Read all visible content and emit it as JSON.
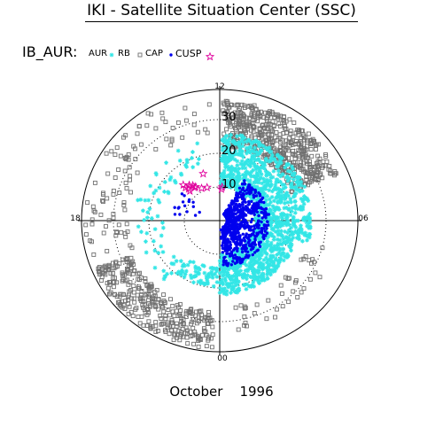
{
  "header": {
    "title": "IKI - Satellite Situation Center (SSC)"
  },
  "legend": {
    "title": "IB_AUR:",
    "entries": [
      {
        "label": "AUR",
        "series": "AUR",
        "marker": "asterisk",
        "color": "#33e6e6"
      },
      {
        "label": "RB",
        "series": "RB",
        "marker": "square",
        "color": "#707070"
      },
      {
        "label": "CAP",
        "series": "CAP",
        "marker": "dot",
        "color": "#0000ee"
      },
      {
        "label": "CUSP",
        "series": "CUSP",
        "marker": "star",
        "color": "#e0009c"
      }
    ]
  },
  "footer": {
    "month": "October",
    "year": "1996"
  },
  "chart_data": {
    "type": "scatter",
    "coordinate_system": "polar MLT / invariant colatitude (deg)",
    "angular_ticks": [
      "12",
      "18",
      "00",
      "06"
    ],
    "radial_ticks": [
      "10",
      "20",
      "30"
    ],
    "radial_range_deg": [
      0,
      40
    ],
    "grid": "dotted rings at 10, 20, 30 deg",
    "series": [
      {
        "name": "AUR",
        "color": "#33e6e6",
        "marker": "asterisk",
        "regions": [
          {
            "mlt": [
              5.0,
              11.9
            ],
            "colat": [
              10,
              26
            ],
            "count": 750
          },
          {
            "mlt": [
              0.0,
              5.0
            ],
            "colat": [
              10,
              22
            ],
            "count": 520
          },
          {
            "mlt": [
              21.5,
              24.0
            ],
            "colat": [
              14,
              20
            ],
            "count": 60
          },
          {
            "mlt": [
              13.0,
              21.5
            ],
            "colat": [
              16,
              24
            ],
            "count": 70
          }
        ]
      },
      {
        "name": "RB",
        "color": "#707070",
        "marker": "square",
        "regions": [
          {
            "mlt": [
              7.5,
              11.9
            ],
            "colat": [
              22,
              36
            ],
            "count": 520
          },
          {
            "mlt": [
              19.5,
              23.8
            ],
            "colat": [
              27,
              38
            ],
            "count": 330
          },
          {
            "mlt": [
              12.2,
              19.5
            ],
            "colat": [
              26,
              38
            ],
            "count": 95
          },
          {
            "mlt": [
              0.5,
              5.0
            ],
            "colat": [
              25,
              33
            ],
            "count": 40
          }
        ]
      },
      {
        "name": "CAP",
        "color": "#0000ee",
        "marker": "dot",
        "regions": [
          {
            "mlt": [
              0.3,
              10.0
            ],
            "colat": [
              2,
              14
            ],
            "count": 650
          },
          {
            "mlt": [
              15.5,
              17.5
            ],
            "colat": [
              6,
              14
            ],
            "count": 16
          }
        ]
      },
      {
        "name": "CUSP",
        "color": "#e0009c",
        "marker": "star",
        "regions": [
          {
            "mlt": [
              13.0,
              15.0
            ],
            "colat": [
              10,
              16
            ],
            "count": 12
          },
          {
            "mlt": [
              11.6,
              12.0
            ],
            "colat": [
              9,
              11
            ],
            "count": 2
          }
        ]
      }
    ]
  }
}
